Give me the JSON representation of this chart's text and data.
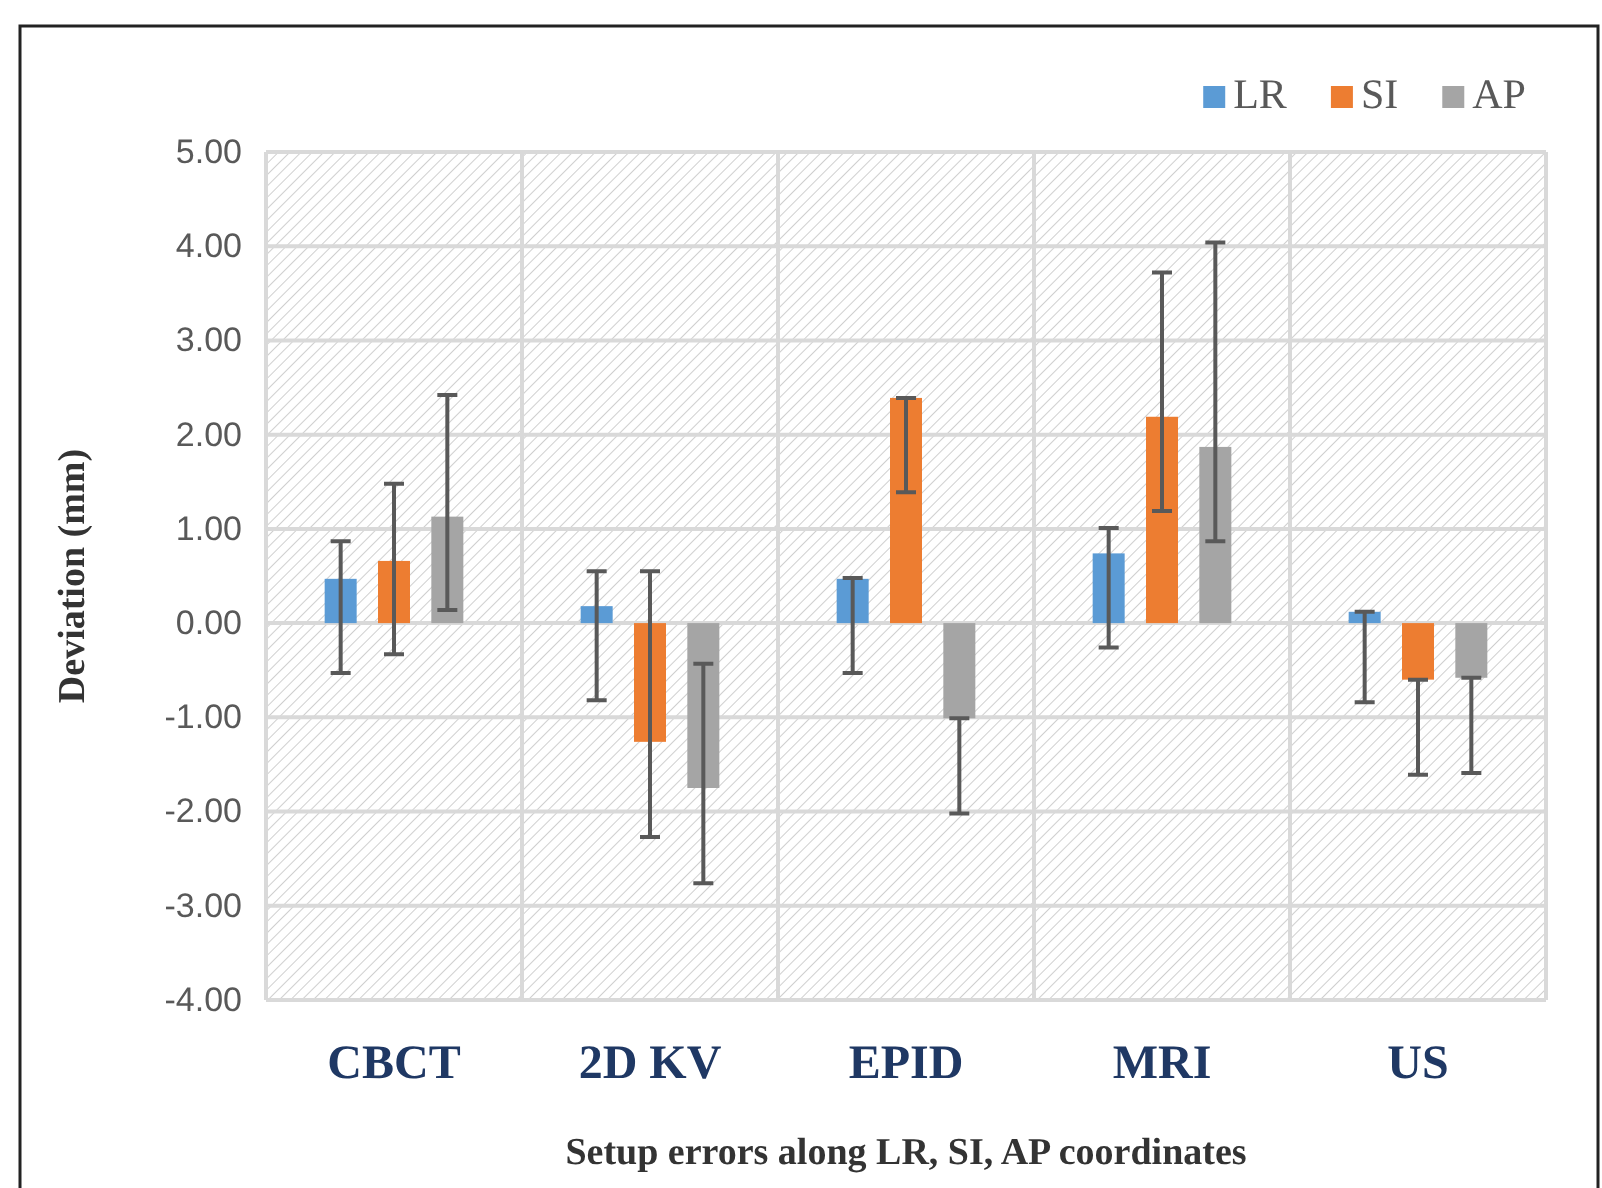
{
  "chart_data": {
    "type": "bar",
    "xlabel": "Setup errors  along LR, SI, AP coordinates",
    "ylabel": "Deviation (mm)",
    "categories": [
      "CBCT",
      "2D KV",
      "EPID",
      "MRI",
      "US"
    ],
    "series": [
      {
        "name": "LR",
        "color": "#5b9bd5",
        "values": [
          0.47,
          0.18,
          0.47,
          0.74,
          0.12
        ],
        "errors": [
          [
            -0.53,
            0.87
          ],
          [
            -0.82,
            0.55
          ],
          [
            -0.53,
            0.48
          ],
          [
            -0.26,
            1.01
          ],
          [
            -0.84,
            0.12
          ]
        ]
      },
      {
        "name": "SI",
        "color": "#ed7d31",
        "values": [
          0.66,
          -1.26,
          2.39,
          2.19,
          -0.6
        ],
        "errors": [
          [
            -0.33,
            1.48
          ],
          [
            -2.27,
            0.55
          ],
          [
            1.39,
            2.39
          ],
          [
            1.19,
            3.72
          ],
          [
            -1.61,
            -0.6
          ]
        ]
      },
      {
        "name": "AP",
        "color": "#a5a5a5",
        "values": [
          1.13,
          -1.75,
          -1.01,
          1.87,
          -0.58
        ],
        "errors": [
          [
            0.14,
            2.42
          ],
          [
            -2.76,
            -0.43
          ],
          [
            -2.02,
            -1.01
          ],
          [
            0.87,
            4.04
          ],
          [
            -1.59,
            -0.58
          ]
        ]
      }
    ],
    "ylim": [
      -4,
      5
    ],
    "yticks": [
      {
        "value": -4,
        "label": "-4.00"
      },
      {
        "value": -3,
        "label": "-3.00"
      },
      {
        "value": -2,
        "label": "-2.00"
      },
      {
        "value": -1,
        "label": "-1.00"
      },
      {
        "value": 0,
        "label": "0.00"
      },
      {
        "value": 1,
        "label": "1.00"
      },
      {
        "value": 2,
        "label": "2.00"
      },
      {
        "value": 3,
        "label": "3.00"
      },
      {
        "value": 4,
        "label": "4.00"
      },
      {
        "value": 5,
        "label": "5.00"
      }
    ],
    "grid": true,
    "legend": "top right"
  }
}
